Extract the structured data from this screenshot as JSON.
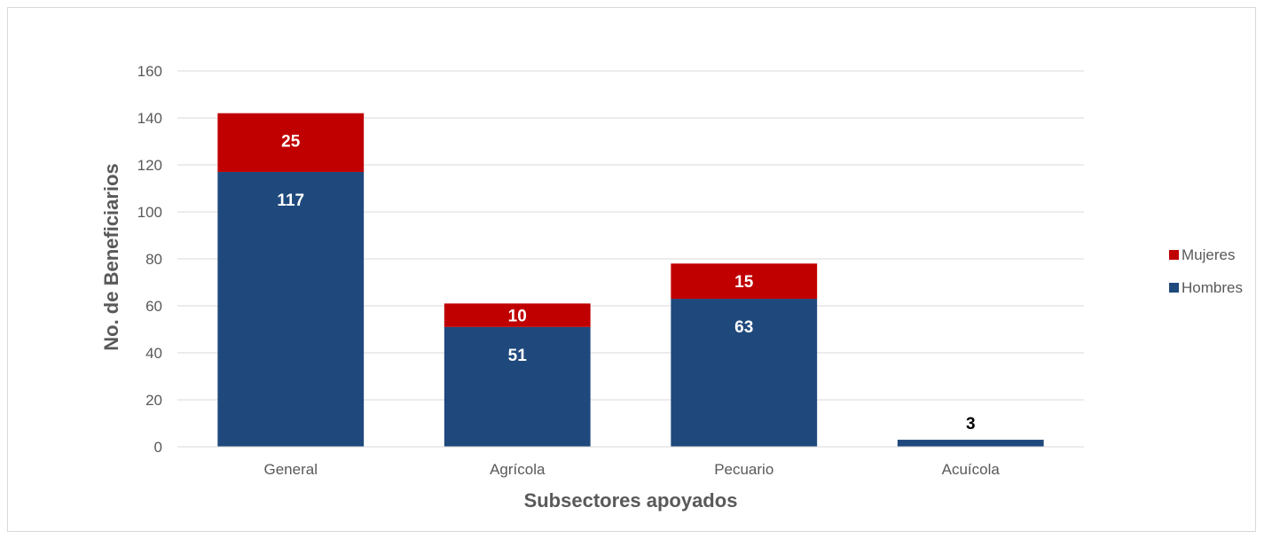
{
  "chart_data": {
    "type": "bar",
    "stacked": true,
    "title": "",
    "xlabel": "Subsectores apoyados",
    "ylabel": "No. de Beneficiarios",
    "categories": [
      "General",
      "Agrícola",
      "Pecuario",
      "Acuícola"
    ],
    "series": [
      {
        "name": "Hombres",
        "color": "#1f497d",
        "values": [
          117,
          51,
          63,
          3
        ]
      },
      {
        "name": "Mujeres",
        "color": "#c00000",
        "values": [
          25,
          10,
          15,
          0
        ]
      }
    ],
    "data_labels": {
      "Hombres": [
        "117",
        "51",
        "63",
        "3"
      ],
      "Mujeres": [
        "25",
        "10",
        "15",
        ""
      ]
    },
    "ylim": [
      0,
      160
    ],
    "yticks": [
      0,
      20,
      40,
      60,
      80,
      100,
      120,
      140,
      160
    ],
    "grid": true,
    "legend": {
      "position": "right",
      "entries": [
        {
          "name": "Mujeres",
          "color": "#c00000"
        },
        {
          "name": "Hombres",
          "color": "#1f497d"
        }
      ]
    }
  }
}
